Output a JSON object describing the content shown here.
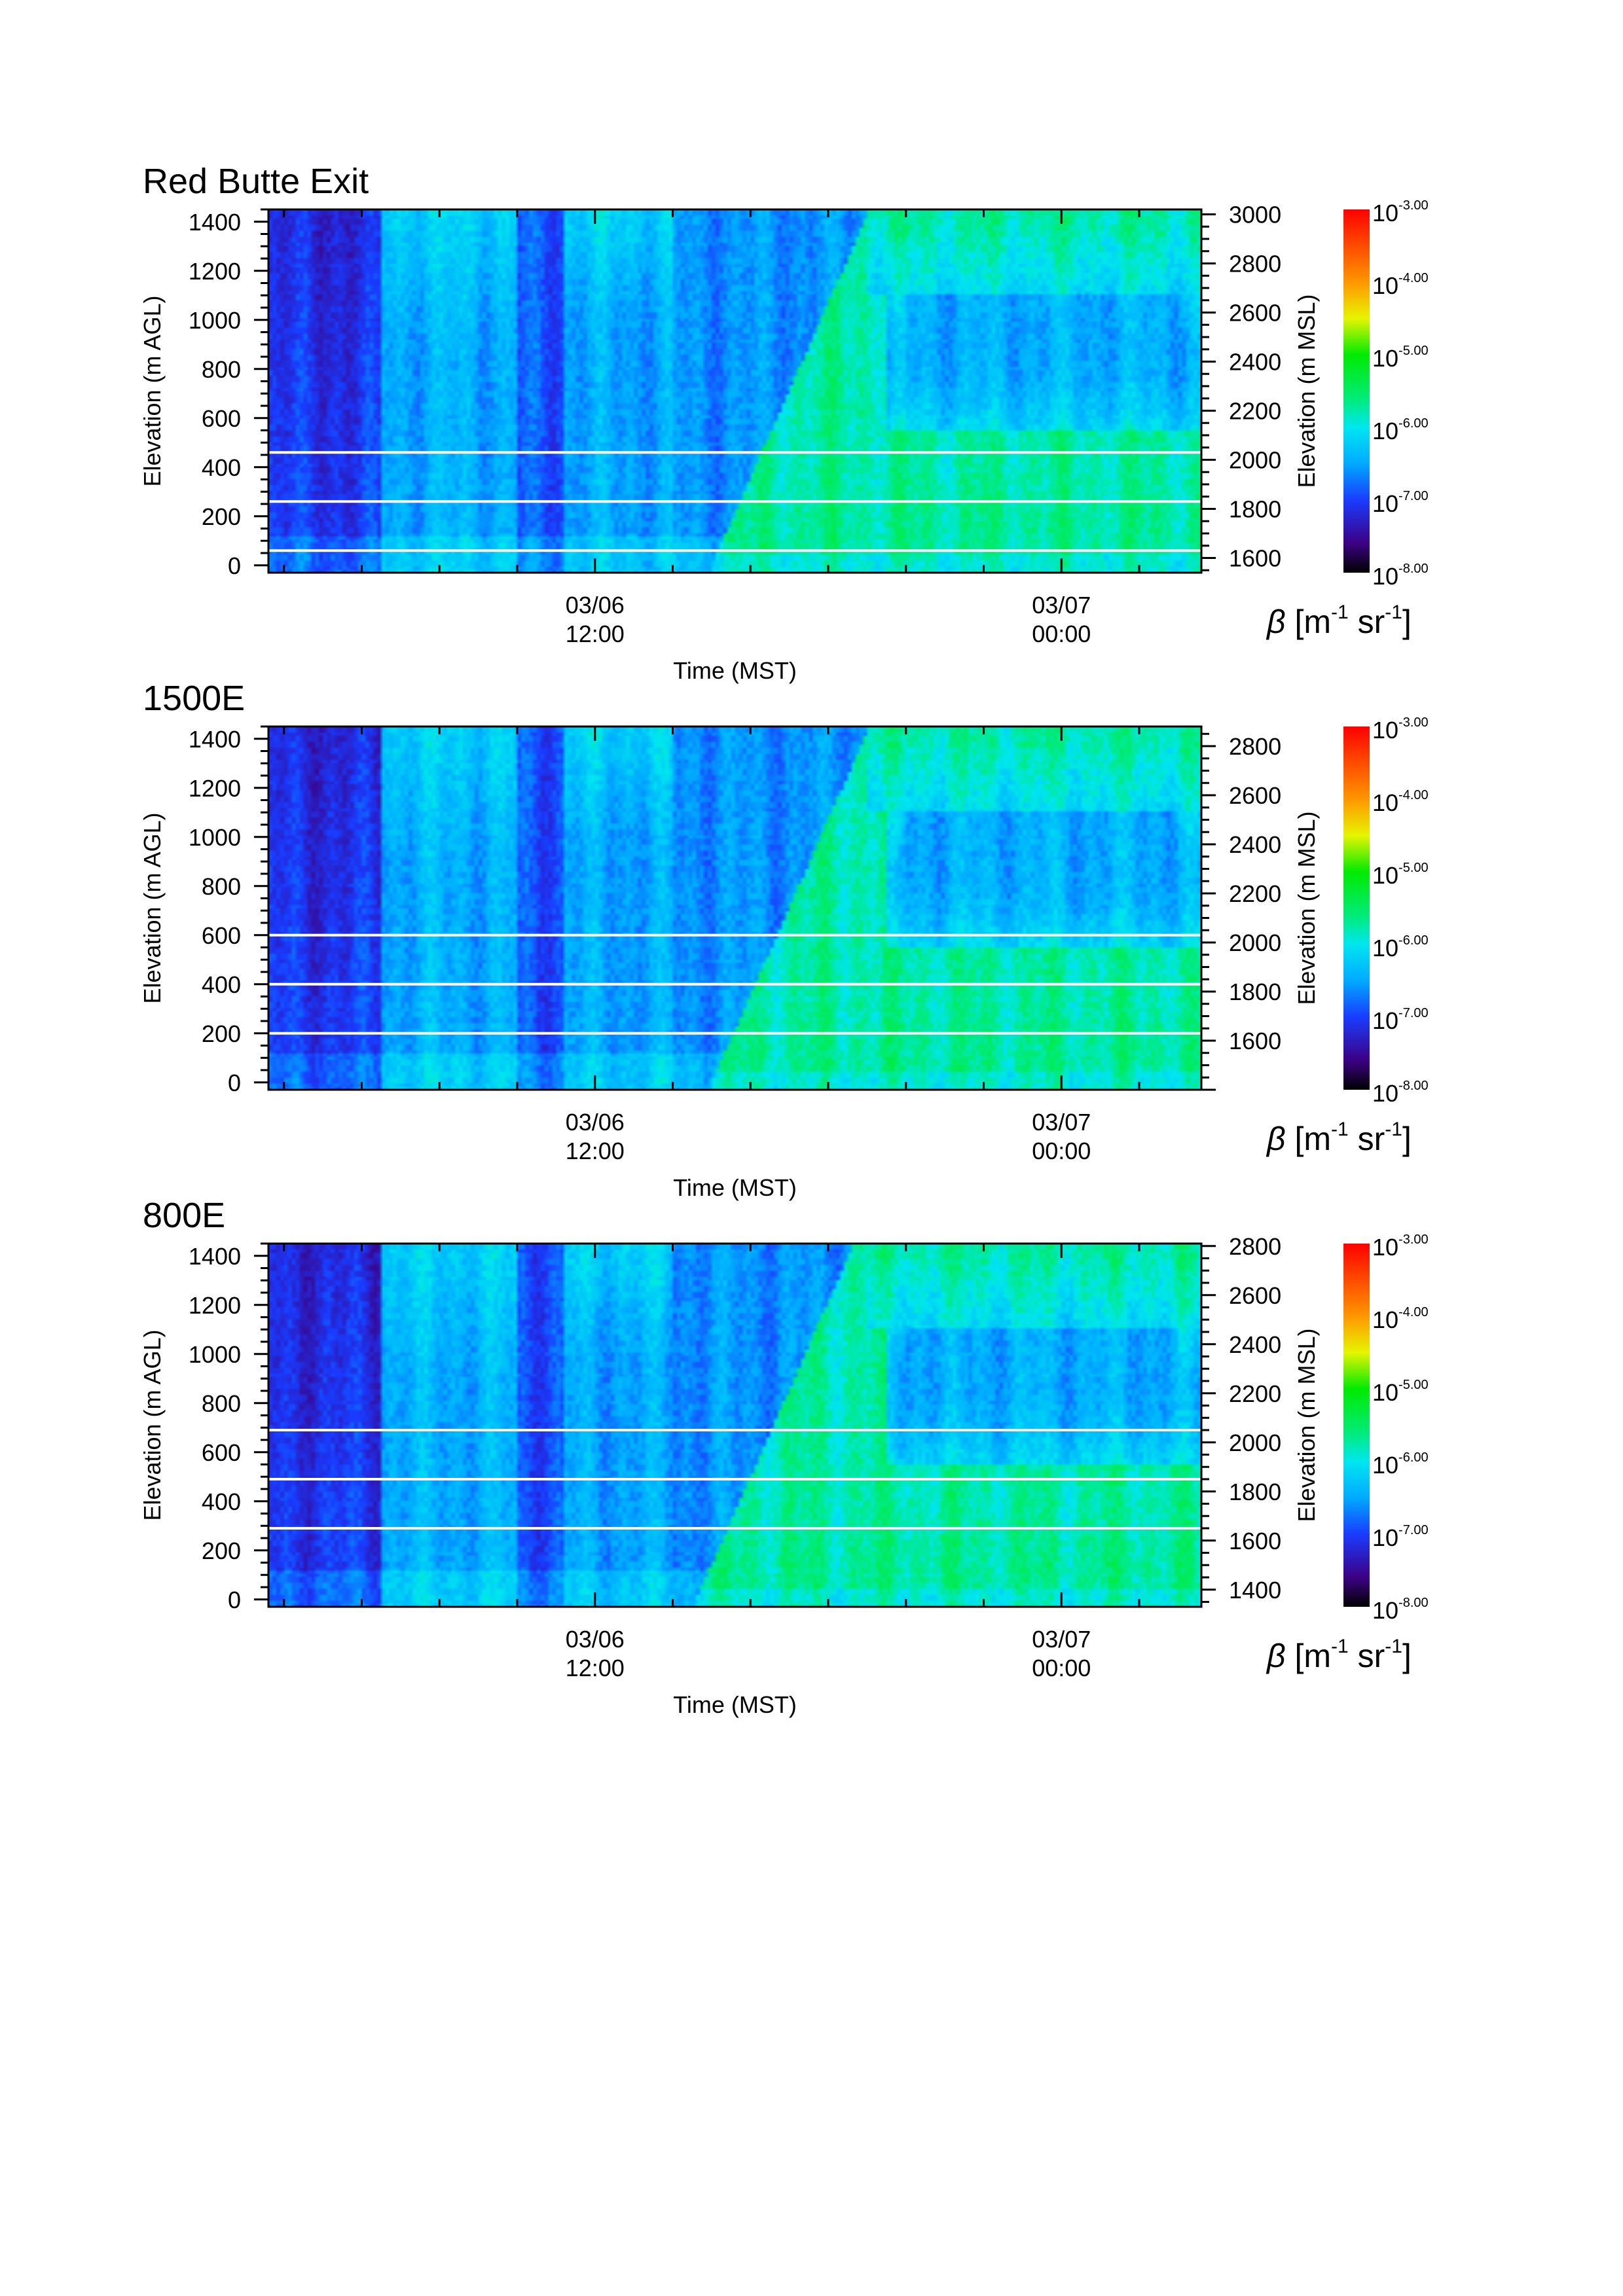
{
  "figure": {
    "x_ticks": [
      {
        "label_line1": "03/06",
        "label_line2": "12:00",
        "time_h": 12
      },
      {
        "label_line1": "03/07",
        "label_line2": "00:00",
        "time_h": 24
      }
    ],
    "colorbar": {
      "exponents": [
        "-3.00",
        "-4.00",
        "-5.00",
        "-6.00",
        "-7.00",
        "-8.00"
      ],
      "base": "10",
      "label_beta": "β",
      "label_units": "[m",
      "label_exp1": "-1",
      "label_sr": " sr",
      "label_exp2": "-1",
      "label_close": "]",
      "colors": [
        "#000000",
        "#3a0080",
        "#1a40ff",
        "#00e0ff",
        "#00ee00",
        "#ffff00",
        "#ff8800",
        "#ff0000"
      ]
    }
  },
  "chart_data": [
    {
      "type": "heatmap",
      "title": "Red Butte Exit",
      "xlabel": "Time (MST)",
      "ylabel": "Elevation (m AGL)",
      "ylabel2": "Elevation (m MSL)",
      "ylim": [
        -30,
        1450
      ],
      "y_ticks": [
        0,
        200,
        400,
        600,
        800,
        1000,
        1200,
        1400
      ],
      "ylim_msl": [
        1540,
        3020
      ],
      "y2_ticks": [
        1600,
        1800,
        2000,
        2200,
        2400,
        2800,
        3000
      ],
      "y2_ticks_extra": [
        2600
      ],
      "xlim_h": [
        3.6,
        27.6
      ],
      "reference_lines_m_agl": [
        460,
        260,
        60
      ],
      "colorbar_log10_range": [
        -8,
        -3
      ]
    },
    {
      "type": "heatmap",
      "title": "1500E",
      "xlabel": "Time (MST)",
      "ylabel": "Elevation (m AGL)",
      "ylabel2": "Elevation (m MSL)",
      "ylim": [
        -30,
        1450
      ],
      "y_ticks": [
        0,
        200,
        400,
        600,
        800,
        1000,
        1200,
        1400
      ],
      "ylim_msl": [
        1400,
        2880
      ],
      "y2_ticks": [
        1600,
        1800,
        2000,
        2200,
        2400,
        2600,
        2800
      ],
      "y2_ticks_extra": [],
      "xlim_h": [
        3.6,
        27.6
      ],
      "reference_lines_m_agl": [
        600,
        400,
        200
      ],
      "colorbar_log10_range": [
        -8,
        -3
      ]
    },
    {
      "type": "heatmap",
      "title": "800E",
      "xlabel": "Time (MST)",
      "ylabel": "Elevation (m AGL)",
      "ylabel2": "Elevation (m MSL)",
      "ylim": [
        -30,
        1450
      ],
      "y_ticks": [
        0,
        200,
        400,
        600,
        800,
        1000,
        1200,
        1400
      ],
      "ylim_msl": [
        1330,
        2810
      ],
      "y2_ticks": [
        1400,
        1600,
        1800,
        2000,
        2200,
        2400,
        2600,
        2800
      ],
      "y2_ticks_extra": [],
      "xlim_h": [
        3.6,
        27.6
      ],
      "reference_lines_m_agl": [
        690,
        490,
        290
      ],
      "colorbar_log10_range": [
        -8,
        -3
      ]
    }
  ]
}
